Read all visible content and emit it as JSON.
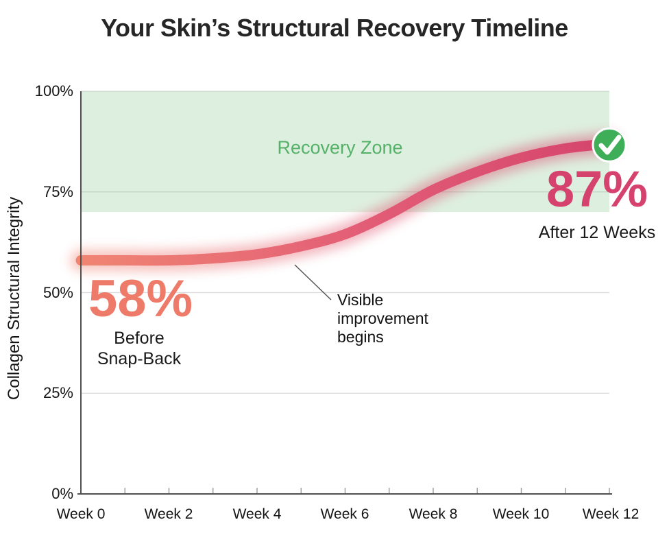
{
  "title": "Your Skin’s Structural Recovery Timeline",
  "colors": {
    "title_text": "#262626",
    "axis_line": "#4f4f4f",
    "grid_line": "#dcdcdc",
    "tick_mark": "#9a9a9a",
    "zone_fill": "rgba(84,176,95,0.20)",
    "zone_label_green": "#55b168",
    "start_salmon": "#ee7b6a",
    "end_pink": "#d4426d",
    "check_green": "#3fae58",
    "curve_gradient": [
      "#f08573",
      "#e25c76",
      "#d5456d"
    ],
    "leader_line": "#555555"
  },
  "chart_data": {
    "type": "line",
    "title": "Your Skin’s Structural Recovery Timeline",
    "xlabel": "",
    "ylabel": "Collagen Structural Integrity",
    "ylim": [
      0,
      100
    ],
    "grid": true,
    "legend": "none",
    "x": [
      0,
      1,
      2,
      3,
      4,
      5,
      6,
      7,
      8,
      9,
      10,
      11,
      12
    ],
    "series": [
      {
        "name": "Collagen Structural Integrity (%)",
        "values": [
          58,
          58,
          58,
          58.5,
          59.5,
          61.5,
          64.5,
          69.5,
          75.5,
          80,
          83.5,
          85.8,
          87
        ]
      }
    ],
    "ytick_values": [
      100,
      75,
      50,
      25,
      0
    ],
    "yticks": [
      "100%",
      "75%",
      "50%",
      "25%",
      "0%"
    ],
    "xtick_weeks": [
      0,
      2,
      4,
      6,
      8,
      10,
      12
    ],
    "xtick_labels": [
      "Week 0",
      "Week 2",
      "Week 4",
      "Week 6",
      "Week 8",
      "Week 10",
      "Week 12"
    ],
    "recovery_zone": {
      "label": "Recovery Zone",
      "from": 70,
      "to": 100
    },
    "annotations": {
      "start": {
        "value": "58%",
        "caption_line1": "Before",
        "caption_line2": "Snap-Back",
        "at_week": 0
      },
      "end": {
        "value": "87%",
        "caption": "After 12 Weeks",
        "at_week": 12
      },
      "improvement": {
        "line1": "Visible",
        "line2": "improvement",
        "line3": "begins",
        "near_week": 5
      }
    }
  }
}
